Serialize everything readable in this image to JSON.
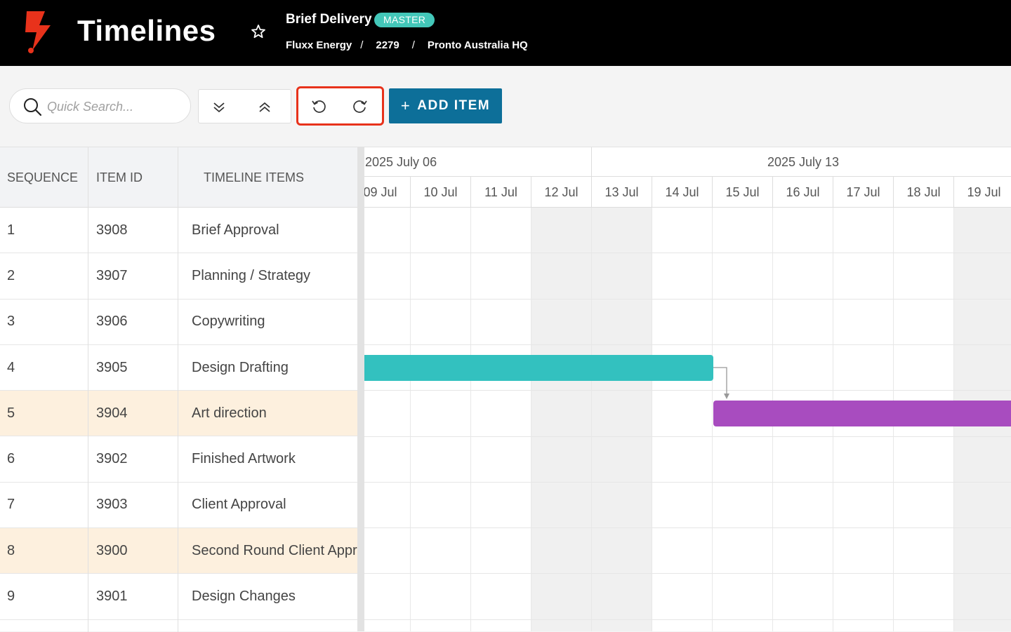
{
  "header": {
    "app_title": "Timelines",
    "project_title": "Brief Delivery",
    "badge": "MASTER",
    "breadcrumb": [
      "Fluxx Energy",
      "2279",
      "Pronto Australia HQ"
    ],
    "breadcrumb_sep": "/"
  },
  "toolbar": {
    "search_placeholder": "Quick Search...",
    "add_item_label": "ADD ITEM",
    "add_item_icon": "+"
  },
  "grid": {
    "columns": [
      "SEQUENCE",
      "ITEM ID",
      "TIMELINE ITEMS"
    ],
    "rows": [
      {
        "seq": "1",
        "id": "3908",
        "name": "Brief Approval",
        "highlight": false
      },
      {
        "seq": "2",
        "id": "3907",
        "name": "Planning / Strategy",
        "highlight": false
      },
      {
        "seq": "3",
        "id": "3906",
        "name": "Copywriting",
        "highlight": false
      },
      {
        "seq": "4",
        "id": "3905",
        "name": "Design Drafting",
        "highlight": false
      },
      {
        "seq": "5",
        "id": "3904",
        "name": "Art direction",
        "highlight": true
      },
      {
        "seq": "6",
        "id": "3902",
        "name": "Finished Artwork",
        "highlight": false
      },
      {
        "seq": "7",
        "id": "3903",
        "name": "Client Approval",
        "highlight": false
      },
      {
        "seq": "8",
        "id": "3900",
        "name": "Second Round Client Approval",
        "highlight": true
      },
      {
        "seq": "9",
        "id": "3901",
        "name": "Design Changes",
        "highlight": false
      }
    ]
  },
  "gantt": {
    "weeks": [
      "2025 July 06",
      "2025 July 13"
    ],
    "days": [
      "09 Jul",
      "10 Jul",
      "11 Jul",
      "12 Jul",
      "13 Jul",
      "14 Jul",
      "15 Jul",
      "16 Jul",
      "17 Jul",
      "18 Jul",
      "19 Jul"
    ],
    "weekend_days": [
      "12 Jul",
      "13 Jul",
      "19 Jul"
    ],
    "bars": [
      {
        "row": 4,
        "name": "Design Drafting",
        "color": "#33c1bf"
      },
      {
        "row": 5,
        "name": "Art direction",
        "color": "#a84cbf"
      }
    ]
  },
  "colors": {
    "brand_red": "#e8321b",
    "badge": "#43c7b9",
    "add_button": "#0d6f99",
    "row_highlight": "#fdf0de"
  }
}
